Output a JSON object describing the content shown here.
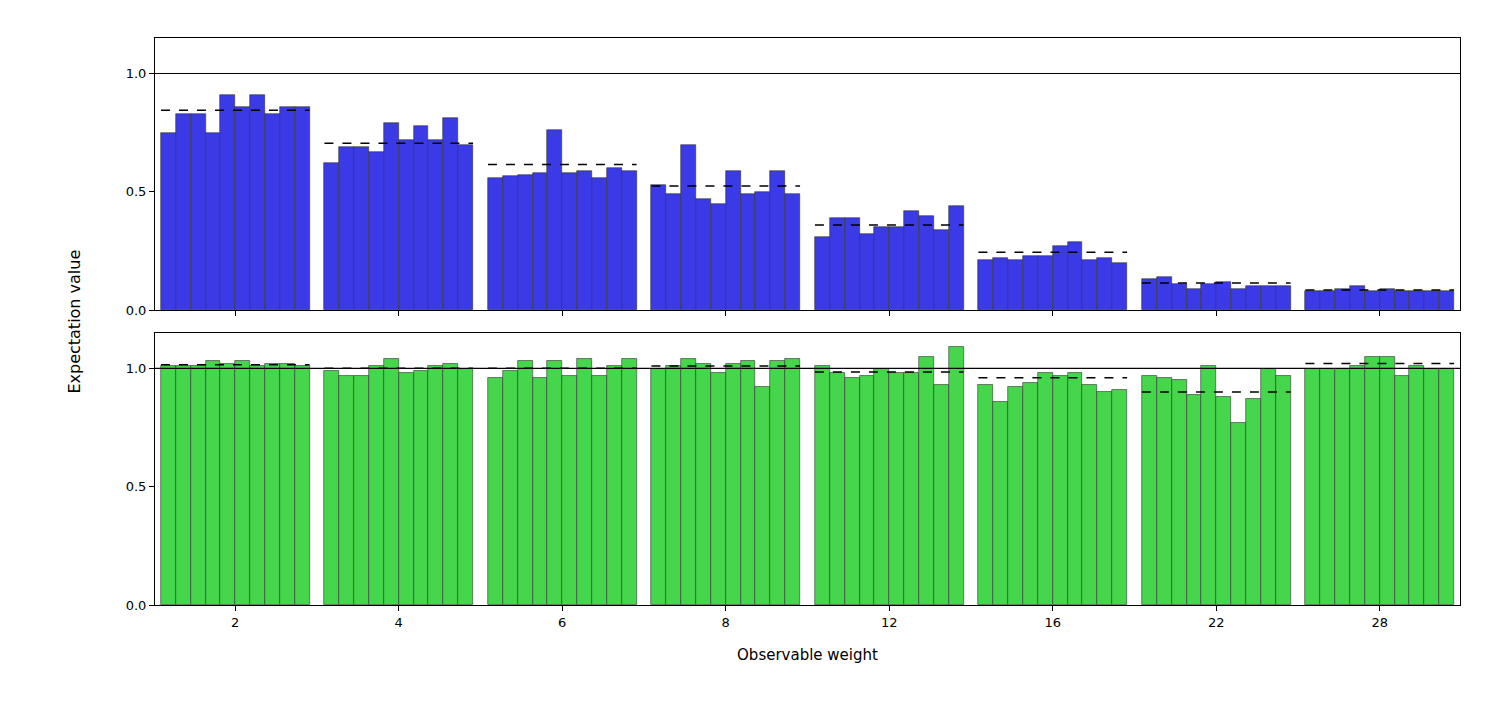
{
  "chart_data": {
    "type": "bar",
    "xlabel": "Observable weight",
    "ylabel": "Expectation value",
    "categories": [
      null,
      null,
      null,
      null,
      null,
      "2",
      null,
      null,
      null,
      null,
      null,
      null,
      null,
      null,
      null,
      "4",
      null,
      null,
      null,
      null,
      null,
      null,
      null,
      null,
      null,
      "6",
      null,
      null,
      null,
      null,
      null,
      null,
      null,
      null,
      null,
      "8",
      null,
      null,
      null,
      null,
      null,
      null,
      null,
      null,
      null,
      "12",
      null,
      null,
      null,
      null,
      null,
      null,
      null,
      null,
      null,
      "16",
      null,
      null,
      null,
      null,
      null,
      null,
      null,
      null,
      null,
      "22",
      null,
      null,
      null,
      null,
      null,
      null,
      null,
      null,
      null,
      "28",
      null,
      null,
      null,
      null
    ],
    "ylim": [
      0,
      1.15
    ],
    "yticks": [
      {
        "value": 0,
        "label": "0.0"
      },
      {
        "value": 0.5,
        "label": "0.5"
      },
      {
        "value": 1,
        "label": "1.0"
      }
    ],
    "reference": 1.0,
    "panels": [
      {
        "color": "#3a3ae6",
        "values": [
          0.75,
          0.83,
          0.83,
          0.75,
          0.91,
          0.86,
          0.91,
          0.83,
          0.86,
          0.86,
          0.62,
          0.69,
          0.69,
          0.67,
          0.79,
          0.72,
          0.78,
          0.72,
          0.81,
          0.7,
          0.56,
          0.565,
          0.57,
          0.58,
          0.76,
          0.58,
          0.59,
          0.56,
          0.6,
          0.59,
          0.53,
          0.49,
          0.7,
          0.47,
          0.45,
          0.59,
          0.49,
          0.5,
          0.59,
          0.49,
          0.31,
          0.39,
          0.39,
          0.32,
          0.35,
          0.35,
          0.42,
          0.4,
          0.34,
          0.44,
          0.21,
          0.22,
          0.21,
          0.23,
          0.23,
          0.27,
          0.29,
          0.21,
          0.22,
          0.2,
          0.13,
          0.14,
          0.11,
          0.09,
          0.11,
          0.12,
          0.09,
          0.1,
          0.1,
          0.1,
          0.08,
          0.08,
          0.09,
          0.1,
          0.08,
          0.09,
          0.08,
          0.08,
          0.08,
          0.08
        ],
        "group_means": [
          0.845,
          0.705,
          0.615,
          0.525,
          0.36,
          0.245,
          0.115,
          0.085
        ]
      },
      {
        "color": "#46d64c",
        "values": [
          1.01,
          1.01,
          1.01,
          1.03,
          1.02,
          1.03,
          1.01,
          1.02,
          1.02,
          1.01,
          0.99,
          0.97,
          0.97,
          1.01,
          1.04,
          0.98,
          0.99,
          1.01,
          1.02,
          1.0,
          0.96,
          0.99,
          1.03,
          0.96,
          1.03,
          0.97,
          1.04,
          0.97,
          1.01,
          1.04,
          1.0,
          1.01,
          1.04,
          1.02,
          0.98,
          1.02,
          1.03,
          0.92,
          1.03,
          1.04,
          1.01,
          0.98,
          0.96,
          0.97,
          1.0,
          0.98,
          0.98,
          1.05,
          0.93,
          1.09,
          0.93,
          0.86,
          0.92,
          0.94,
          0.98,
          0.97,
          0.98,
          0.93,
          0.9,
          0.91,
          0.97,
          0.96,
          0.95,
          0.89,
          1.01,
          0.88,
          0.77,
          0.87,
          1.0,
          0.97,
          1.0,
          1.0,
          1.0,
          1.01,
          1.05,
          1.05,
          0.97,
          1.01,
          1.0,
          1.0
        ],
        "group_means": [
          1.015,
          1.0,
          1.0,
          1.01,
          0.985,
          0.96,
          0.9,
          1.02
        ]
      }
    ]
  }
}
